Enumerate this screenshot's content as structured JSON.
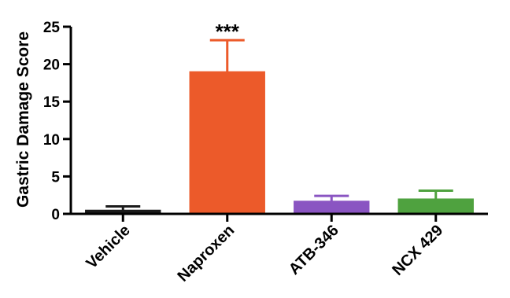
{
  "chart_data": {
    "type": "bar",
    "title": "",
    "xlabel": "",
    "ylabel": "Gastric Damage Score",
    "ylim": [
      0,
      25
    ],
    "yticks": [
      0,
      5,
      10,
      15,
      20,
      25
    ],
    "grid": false,
    "categories": [
      "Vehicle",
      "Naproxen",
      "ATB-346",
      "NCX 429"
    ],
    "values": [
      0.5,
      19.0,
      1.7,
      2.0
    ],
    "errors": [
      0.5,
      4.2,
      0.7,
      1.1
    ],
    "colors": [
      "#1a1a1a",
      "#ec5a2a",
      "#8a55c2",
      "#4fa23f"
    ],
    "annotations": [
      {
        "category": "Naproxen",
        "text": "***"
      }
    ]
  }
}
